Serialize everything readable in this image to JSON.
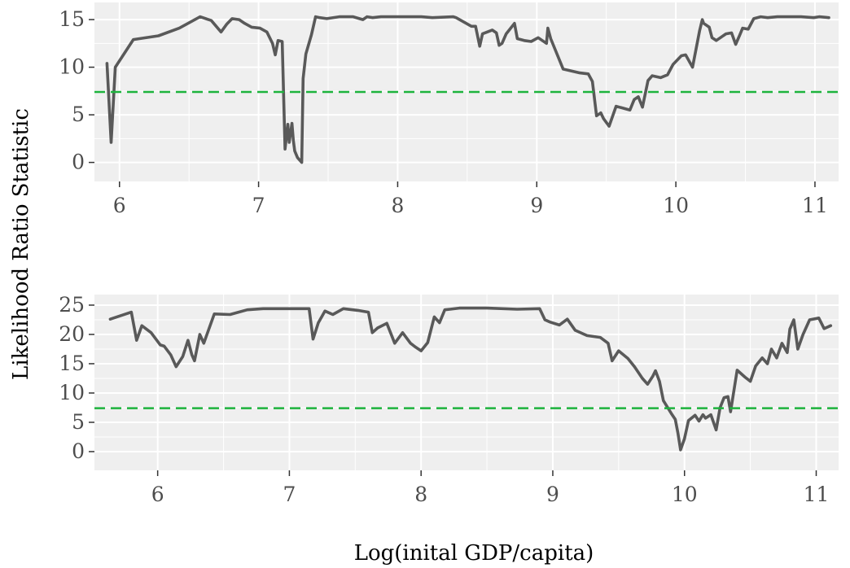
{
  "figure": {
    "ylabel": "Likelihood Ratio Statistic",
    "xlabel": "Log(inital GDP/capita)"
  },
  "chart_data": [
    {
      "type": "line",
      "xlim": [
        5.82,
        11.17
      ],
      "ylim": [
        -2,
        16.8
      ],
      "x_ticks": [
        6,
        7,
        8,
        9,
        10,
        11
      ],
      "y_ticks": [
        0,
        5,
        10,
        15
      ],
      "grid": true,
      "threshold": 7.4,
      "colors": {
        "series": "#595959",
        "threshold": "#1db33d",
        "panel_bg": "#efefef",
        "grid": "#ffffff"
      },
      "series": [
        {
          "x": [
            5.91,
            5.94,
            5.97,
            6.1,
            6.28,
            6.43,
            6.58,
            6.66,
            6.73,
            6.77,
            6.81,
            6.86,
            6.9,
            6.95,
            7.01,
            7.06,
            7.1,
            7.12,
            7.14,
            7.17,
            7.19,
            7.21,
            7.22,
            7.24,
            7.25,
            7.26,
            7.28,
            7.31,
            7.32,
            7.34,
            7.38,
            7.41,
            7.44,
            7.49,
            7.58,
            7.68,
            7.75,
            7.78,
            7.82,
            7.88,
            7.95,
            8.04,
            8.17,
            8.25,
            8.4,
            8.42,
            8.53,
            8.56,
            8.59,
            8.61,
            8.68,
            8.71,
            8.73,
            8.75,
            8.78,
            8.84,
            8.86,
            8.91,
            8.96,
            9.01,
            9.07,
            9.08,
            9.1,
            9.19,
            9.31,
            9.37,
            9.4,
            9.43,
            9.46,
            9.48,
            9.52,
            9.57,
            9.62,
            9.67,
            9.7,
            9.73,
            9.76,
            9.8,
            9.83,
            9.89,
            9.94,
            9.98,
            10.04,
            10.07,
            10.12,
            10.17,
            10.19,
            10.2,
            10.24,
            10.26,
            10.29,
            10.32,
            10.36,
            10.4,
            10.43,
            10.46,
            10.48,
            10.52,
            10.56,
            10.61,
            10.66,
            10.73,
            10.8,
            10.9,
            10.99,
            11.03,
            11.1
          ],
          "y": [
            10.4,
            2.1,
            10.0,
            12.9,
            13.3,
            14.1,
            15.3,
            14.9,
            13.7,
            14.5,
            15.1,
            15.0,
            14.6,
            14.2,
            14.1,
            13.7,
            12.5,
            11.3,
            12.8,
            12.7,
            1.4,
            4.0,
            2.1,
            4.1,
            2.3,
            1.2,
            0.5,
            0.0,
            8.8,
            11.4,
            13.4,
            15.3,
            15.2,
            15.1,
            15.3,
            15.3,
            15.0,
            15.3,
            15.2,
            15.3,
            15.3,
            15.3,
            15.3,
            15.2,
            15.3,
            15.2,
            14.3,
            14.3,
            12.2,
            13.5,
            13.9,
            13.6,
            12.3,
            12.5,
            13.5,
            14.6,
            13.0,
            12.8,
            12.7,
            13.1,
            12.5,
            14.1,
            13.0,
            9.8,
            9.4,
            9.3,
            8.5,
            4.9,
            5.2,
            4.6,
            3.8,
            5.9,
            5.7,
            5.5,
            6.6,
            6.9,
            5.8,
            8.6,
            9.1,
            8.9,
            9.2,
            10.3,
            11.2,
            11.3,
            10.0,
            13.8,
            15.0,
            14.6,
            14.2,
            13.1,
            12.8,
            13.1,
            13.5,
            13.6,
            12.4,
            13.4,
            14.1,
            14.0,
            15.1,
            15.3,
            15.2,
            15.3,
            15.3,
            15.3,
            15.2,
            15.3,
            15.2
          ]
        }
      ]
    },
    {
      "type": "line",
      "xlim": [
        5.52,
        11.17
      ],
      "ylim": [
        -3.2,
        26.8
      ],
      "x_ticks": [
        6,
        7,
        8,
        9,
        10,
        11
      ],
      "y_ticks": [
        0,
        5,
        10,
        15,
        20,
        25
      ],
      "grid": true,
      "threshold": 7.4,
      "colors": {
        "series": "#595959",
        "threshold": "#1db33d",
        "panel_bg": "#efefef",
        "grid": "#ffffff"
      },
      "series": [
        {
          "x": [
            5.64,
            5.8,
            5.84,
            5.88,
            5.95,
            6.02,
            6.05,
            6.1,
            6.14,
            6.19,
            6.23,
            6.26,
            6.28,
            6.32,
            6.35,
            6.43,
            6.55,
            6.68,
            6.8,
            7.0,
            7.15,
            7.18,
            7.22,
            7.27,
            7.33,
            7.41,
            7.52,
            7.6,
            7.63,
            7.67,
            7.74,
            7.8,
            7.86,
            7.92,
            7.96,
            8.0,
            8.05,
            8.1,
            8.14,
            8.18,
            8.22,
            8.29,
            8.5,
            8.73,
            8.9,
            8.94,
            8.98,
            9.05,
            9.11,
            9.17,
            9.26,
            9.36,
            9.42,
            9.45,
            9.5,
            9.57,
            9.62,
            9.68,
            9.72,
            9.76,
            9.78,
            9.81,
            9.84,
            9.9,
            9.93,
            9.95,
            9.97,
            10.0,
            10.03,
            10.08,
            10.11,
            10.14,
            10.16,
            10.2,
            10.24,
            10.27,
            10.3,
            10.33,
            10.35,
            10.4,
            10.46,
            10.5,
            10.54,
            10.59,
            10.63,
            10.66,
            10.7,
            10.74,
            10.78,
            10.8,
            10.83,
            10.86,
            10.9,
            10.95,
            11.02,
            11.06,
            11.11
          ],
          "y": [
            22.6,
            23.8,
            19.0,
            21.5,
            20.3,
            18.2,
            18.0,
            16.5,
            14.5,
            16.2,
            19.0,
            16.5,
            15.5,
            20.0,
            18.5,
            23.5,
            23.4,
            24.2,
            24.4,
            24.4,
            24.4,
            19.2,
            22.0,
            24.0,
            23.4,
            24.4,
            24.1,
            23.8,
            20.3,
            21.1,
            21.9,
            18.5,
            20.3,
            18.5,
            17.8,
            17.2,
            18.6,
            23.0,
            22.0,
            24.2,
            24.3,
            24.5,
            24.5,
            24.3,
            24.4,
            22.5,
            22.1,
            21.6,
            22.6,
            20.7,
            19.8,
            19.5,
            18.5,
            15.5,
            17.2,
            15.9,
            14.5,
            12.5,
            11.5,
            12.9,
            13.8,
            12.0,
            8.7,
            6.5,
            5.5,
            3.2,
            0.3,
            2.2,
            5.3,
            6.2,
            5.2,
            6.3,
            5.7,
            6.3,
            3.7,
            7.5,
            9.2,
            9.4,
            6.8,
            13.9,
            12.7,
            12.0,
            14.6,
            16.0,
            15.0,
            17.5,
            16.0,
            18.5,
            16.9,
            20.9,
            22.5,
            17.5,
            20.0,
            22.5,
            22.8,
            21.0,
            21.5
          ]
        }
      ]
    }
  ]
}
